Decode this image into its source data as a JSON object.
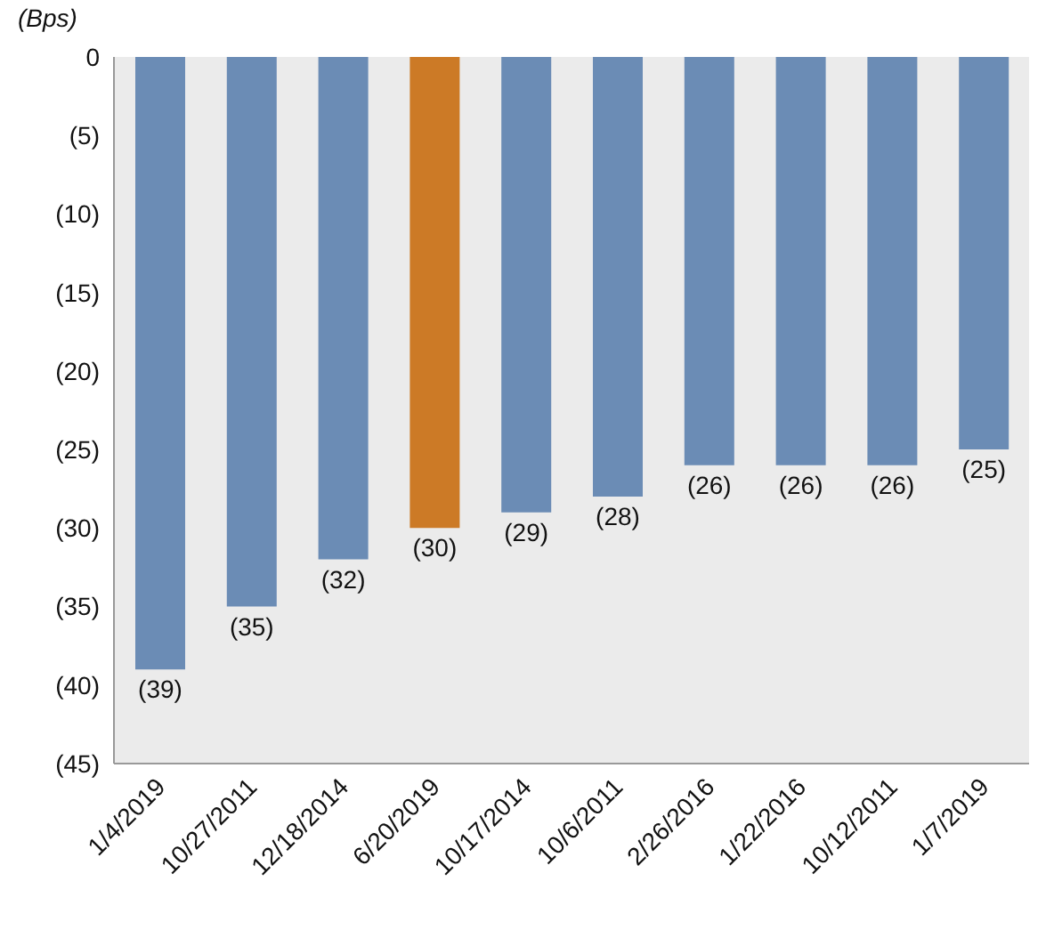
{
  "chart_data": {
    "type": "bar",
    "ylabel": "(Bps)",
    "categories": [
      "1/4/2019",
      "10/27/2011",
      "12/18/2014",
      "6/20/2019",
      "10/17/2014",
      "10/6/2011",
      "2/26/2016",
      "1/22/2016",
      "10/12/2011",
      "1/7/2019"
    ],
    "values": [
      -39,
      -35,
      -32,
      -30,
      -29,
      -28,
      -26,
      -26,
      -26,
      -25
    ],
    "value_labels": [
      "(39)",
      "(35)",
      "(32)",
      "(30)",
      "(29)",
      "(28)",
      "(26)",
      "(26)",
      "(26)",
      "(25)"
    ],
    "colors": [
      "#6b8cb5",
      "#6b8cb5",
      "#6b8cb5",
      "#cc7a26",
      "#6b8cb5",
      "#6b8cb5",
      "#6b8cb5",
      "#6b8cb5",
      "#6b8cb5",
      "#6b8cb5"
    ],
    "ylim": [
      -45,
      0
    ],
    "yticks": [
      0,
      {
        "value": -5,
        "label": "(5)"
      },
      {
        "value": -10,
        "label": "(10)"
      },
      {
        "value": -15,
        "label": "(15)"
      },
      {
        "value": -20,
        "label": "(20)"
      },
      {
        "value": -25,
        "label": "(25)"
      },
      {
        "value": -30,
        "label": "(30)"
      },
      {
        "value": -35,
        "label": "(35)"
      },
      {
        "value": -40,
        "label": "(40)"
      },
      {
        "value": -45,
        "label": "(45)"
      }
    ],
    "grid": false,
    "legend": false
  }
}
